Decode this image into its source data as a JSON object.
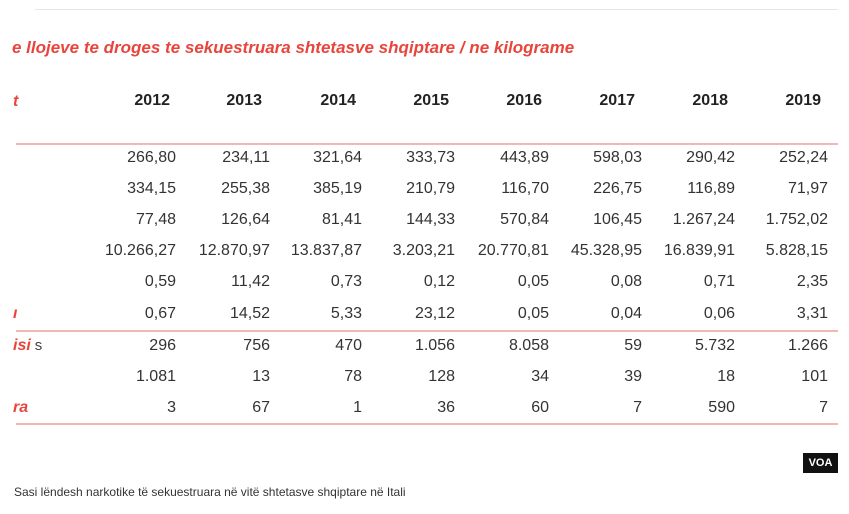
{
  "title": "e llojeve te droges te sekuestruara shtetasve shqiptare / ne kilograme",
  "first_header": "t",
  "voa_logo": "VOA",
  "caption": "Sasi lëndesh narkotike të sekuestruara në vitë shtetasve shqiptare në Itali",
  "colors": {
    "accent": "#e8453c",
    "rule": "#f1b9b4"
  },
  "chart_data": {
    "type": "table",
    "title": "e llojeve te droges te sekuestruara shtetasve shqiptare / ne kilograme",
    "columns": [
      "2012",
      "2013",
      "2014",
      "2015",
      "2016",
      "2017",
      "2018",
      "2019"
    ],
    "rows": [
      {
        "label": "",
        "extra": "",
        "values": [
          "266,80",
          "234,11",
          "321,64",
          "333,73",
          "443,89",
          "598,03",
          "290,42",
          "252,24"
        ]
      },
      {
        "label": "",
        "extra": "",
        "values": [
          "334,15",
          "255,38",
          "385,19",
          "210,79",
          "116,70",
          "226,75",
          "116,89",
          "71,97"
        ]
      },
      {
        "label": "",
        "extra": "",
        "values": [
          "77,48",
          "126,64",
          "81,41",
          "144,33",
          "570,84",
          "106,45",
          "1.267,24",
          "1.752,02"
        ]
      },
      {
        "label": "",
        "extra": "",
        "values": [
          "10.266,27",
          "12.870,97",
          "13.837,87",
          "3.203,21",
          "20.770,81",
          "45.328,95",
          "16.839,91",
          "5.828,15"
        ]
      },
      {
        "label": "",
        "extra": "",
        "values": [
          "0,59",
          "11,42",
          "0,73",
          "0,12",
          "0,05",
          "0,08",
          "0,71",
          "2,35"
        ]
      },
      {
        "label": "ı",
        "extra": "",
        "values": [
          "0,67",
          "14,52",
          "5,33",
          "23,12",
          "0,05",
          "0,04",
          "0,06",
          "3,31"
        ]
      },
      {
        "label": "isi",
        "extra": "s",
        "values": [
          "296",
          "756",
          "470",
          "1.056",
          "8.058",
          "59",
          "5.732",
          "1.266"
        ]
      },
      {
        "label": "",
        "extra": "",
        "values": [
          "1.081",
          "13",
          "78",
          "128",
          "34",
          "39",
          "18",
          "101"
        ]
      },
      {
        "label": "ra",
        "extra": "",
        "values": [
          "3",
          "67",
          "1",
          "36",
          "60",
          "7",
          "590",
          "7"
        ]
      }
    ]
  }
}
